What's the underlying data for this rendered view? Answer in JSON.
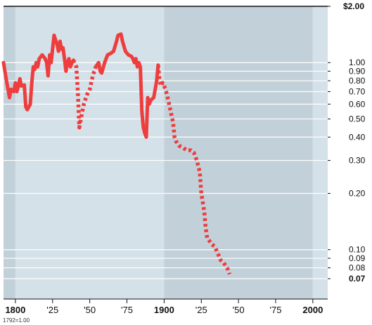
{
  "chart_data": {
    "type": "line",
    "scale": "log",
    "ylim": [
      0.07,
      2.0
    ],
    "xlim": [
      1792,
      2010
    ],
    "y_ticks": [
      {
        "value": 2.0,
        "label": "$2.00",
        "bold": true
      },
      {
        "value": 1.0,
        "label": "1.00"
      },
      {
        "value": 0.9,
        "label": "0.90"
      },
      {
        "value": 0.8,
        "label": "0.80"
      },
      {
        "value": 0.7,
        "label": "0.70"
      },
      {
        "value": 0.6,
        "label": "0.60"
      },
      {
        "value": 0.5,
        "label": "0.50"
      },
      {
        "value": 0.4,
        "label": "0.40"
      },
      {
        "value": 0.3,
        "label": "0.30"
      },
      {
        "value": 0.2,
        "label": "0.20"
      },
      {
        "value": 0.1,
        "label": "0.10"
      },
      {
        "value": 0.09,
        "label": "0.09"
      },
      {
        "value": 0.08,
        "label": "0.08"
      },
      {
        "value": 0.07,
        "label": "0.07",
        "bold": true
      }
    ],
    "x_ticks": [
      {
        "value": 1800,
        "label": "1800",
        "bold": true
      },
      {
        "value": 1825,
        "label": "'25"
      },
      {
        "value": 1850,
        "label": "'50"
      },
      {
        "value": 1875,
        "label": "'75"
      },
      {
        "value": 1900,
        "label": "1900",
        "bold": true
      },
      {
        "value": 1925,
        "label": "'25"
      },
      {
        "value": 1950,
        "label": "'50"
      },
      {
        "value": 1975,
        "label": "'75"
      },
      {
        "value": 2000,
        "label": "2000",
        "bold": true
      }
    ],
    "shaded_periods": [
      {
        "start": 1792,
        "end": 1800,
        "color": "#c2d0d9"
      },
      {
        "start": 1800,
        "end": 1900,
        "color": "#d4e1e9"
      },
      {
        "start": 1900,
        "end": 2000,
        "color": "#c2d0d9"
      },
      {
        "start": 2000,
        "end": 2010,
        "color": "#d4e1e9"
      }
    ],
    "series": [
      {
        "color": "#ee3d3d",
        "segments": [
          {
            "style": "solid",
            "points": [
              [
                1792,
                1.0
              ],
              [
                1794,
                0.8
              ],
              [
                1796,
                0.65
              ],
              [
                1797,
                0.72
              ],
              [
                1799,
                0.7
              ],
              [
                1800,
                0.78
              ],
              [
                1801,
                0.7
              ],
              [
                1802,
                0.75
              ],
              [
                1803,
                0.82
              ],
              [
                1804,
                0.75
              ],
              [
                1806,
                0.76
              ],
              [
                1807,
                0.58
              ],
              [
                1808,
                0.56
              ],
              [
                1810,
                0.6
              ],
              [
                1811,
                0.78
              ],
              [
                1812,
                0.95
              ],
              [
                1813,
                0.92
              ],
              [
                1814,
                1.0
              ],
              [
                1815,
                0.95
              ],
              [
                1816,
                1.05
              ],
              [
                1818,
                1.1
              ],
              [
                1820,
                1.05
              ],
              [
                1821,
                1.0
              ],
              [
                1822,
                0.85
              ],
              [
                1823,
                1.1
              ],
              [
                1824,
                1.0
              ],
              [
                1826,
                1.4
              ],
              [
                1828,
                1.25
              ],
              [
                1829,
                1.15
              ],
              [
                1830,
                1.3
              ],
              [
                1831,
                1.18
              ],
              [
                1832,
                1.2
              ],
              [
                1833,
                1.05
              ],
              [
                1834,
                0.9
              ],
              [
                1835,
                1.0
              ],
              [
                1836,
                1.05
              ],
              [
                1837,
                0.95
              ],
              [
                1838,
                1.0
              ],
              [
                1839,
                1.03
              ]
            ]
          },
          {
            "style": "dashed",
            "points": [
              [
                1839,
                1.03
              ],
              [
                1841,
                0.95
              ],
              [
                1842,
                0.7
              ],
              [
                1843,
                0.45
              ],
              [
                1844,
                0.5
              ],
              [
                1846,
                0.6
              ],
              [
                1848,
                0.67
              ],
              [
                1850,
                0.72
              ],
              [
                1852,
                0.85
              ],
              [
                1854,
                0.95
              ]
            ]
          },
          {
            "style": "solid",
            "points": [
              [
                1854,
                0.95
              ],
              [
                1856,
                1.0
              ],
              [
                1857,
                0.9
              ],
              [
                1858,
                0.88
              ],
              [
                1860,
                1.0
              ],
              [
                1862,
                1.1
              ],
              [
                1864,
                1.12
              ],
              [
                1866,
                1.15
              ],
              [
                1868,
                1.3
              ],
              [
                1869,
                1.4
              ],
              [
                1871,
                1.42
              ],
              [
                1872,
                1.3
              ],
              [
                1874,
                1.15
              ],
              [
                1876,
                1.1
              ],
              [
                1878,
                1.08
              ],
              [
                1879,
                1.05
              ],
              [
                1880,
                1.0
              ],
              [
                1881,
                1.05
              ],
              [
                1882,
                0.95
              ],
              [
                1883,
                1.0
              ],
              [
                1884,
                0.95
              ],
              [
                1885,
                0.55
              ],
              [
                1886,
                0.45
              ],
              [
                1887,
                0.42
              ],
              [
                1888,
                0.4
              ],
              [
                1889,
                0.65
              ],
              [
                1890,
                0.6
              ],
              [
                1891,
                0.63
              ],
              [
                1893,
                0.65
              ],
              [
                1895,
                0.8
              ],
              [
                1896,
                0.97
              ]
            ]
          },
          {
            "style": "dashed",
            "points": [
              [
                1896,
                0.97
              ],
              [
                1897,
                0.8
              ],
              [
                1898,
                0.75
              ],
              [
                1899,
                0.78
              ],
              [
                1901,
                0.72
              ],
              [
                1903,
                0.62
              ],
              [
                1905,
                0.52
              ],
              [
                1906,
                0.48
              ],
              [
                1907,
                0.4
              ],
              [
                1908,
                0.38
              ],
              [
                1910,
                0.36
              ],
              [
                1913,
                0.35
              ],
              [
                1915,
                0.34
              ],
              [
                1918,
                0.34
              ],
              [
                1920,
                0.33
              ],
              [
                1922,
                0.3
              ],
              [
                1924,
                0.26
              ],
              [
                1925,
                0.2
              ],
              [
                1927,
                0.16
              ],
              [
                1928,
                0.13
              ],
              [
                1929,
                0.115
              ],
              [
                1931,
                0.11
              ],
              [
                1932,
                0.107
              ],
              [
                1934,
                0.104
              ],
              [
                1935,
                0.1
              ],
              [
                1937,
                0.092
              ],
              [
                1938,
                0.088
              ],
              [
                1940,
                0.085
              ],
              [
                1941,
                0.083
              ],
              [
                1942,
                0.081
              ],
              [
                1943,
                0.078
              ],
              [
                1944,
                0.074
              ]
            ]
          }
        ]
      }
    ],
    "footnote": "1792=1.00"
  }
}
